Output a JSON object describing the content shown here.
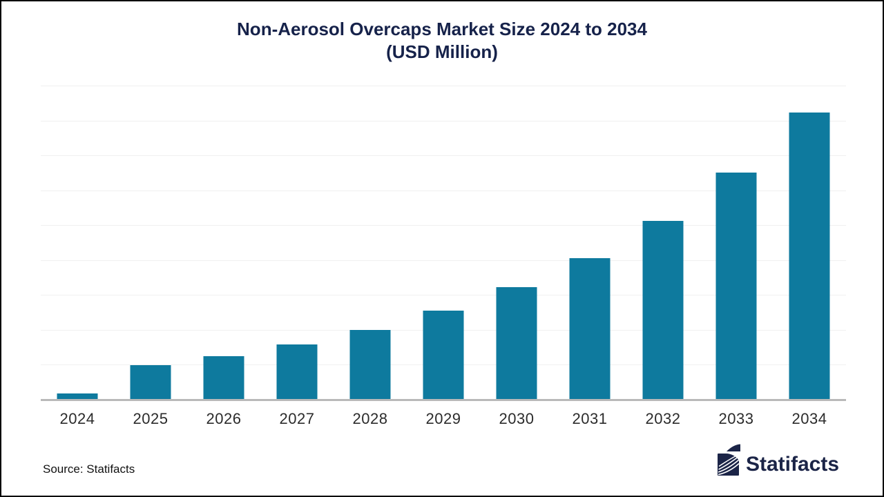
{
  "title": {
    "line1": "Non-Aerosol Overcaps Market Size 2024 to 2034",
    "line2": "(USD Million)",
    "color": "#16224a"
  },
  "chart_data": {
    "type": "bar",
    "title": "Non-Aerosol Overcaps Market Size 2024 to 2034 (USD Million)",
    "categories": [
      "2024",
      "2025",
      "2026",
      "2027",
      "2028",
      "2029",
      "2030",
      "2031",
      "2032",
      "2033",
      "2034"
    ],
    "values_relative_pct_of_max": [
      2.2,
      11.9,
      15.1,
      19.1,
      24.4,
      31.0,
      39.2,
      49.4,
      62.3,
      79.1,
      100.0
    ],
    "bar_height_pct_of_plot": [
      2.0,
      10.9,
      13.8,
      17.5,
      22.3,
      28.4,
      35.8,
      45.1,
      57.0,
      72.3,
      91.4
    ],
    "xlabel": "",
    "ylabel": "",
    "y_axis_labels_visible": false,
    "data_labels_visible": false,
    "legend": "none",
    "grid": "horizontal",
    "gridline_count": 9,
    "gridline_color": "#f0f0f0",
    "axis_line_color": "#b9b9b9",
    "bar_color": "#0e7a9e",
    "tick_label_color": "#2b2b2b"
  },
  "footer": {
    "source_label": "Source: Statifacts",
    "brand_name": "Statifacts",
    "brand_color": "#1b2447"
  }
}
